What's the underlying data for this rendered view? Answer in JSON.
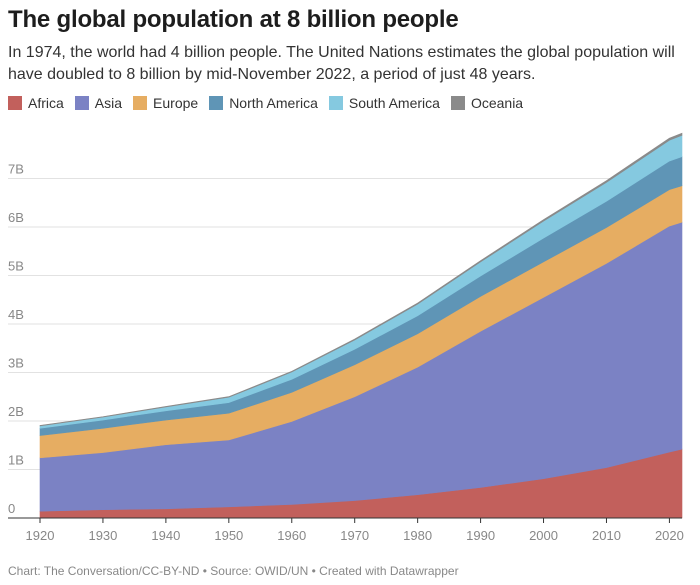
{
  "title": "The global population at 8 billion people",
  "subtitle": "In 1974, the world had 4 billion people. The United Nations estimates the global population will have doubled to 8 billion by mid-November 2022, a period of just 48 years.",
  "footer": "Chart: The Conversation/CC-BY-ND • Source: OWID/UN • Created with Datawrapper",
  "chart_data": {
    "type": "area",
    "stacked": true,
    "x": [
      1920,
      1930,
      1940,
      1950,
      1960,
      1970,
      1980,
      1990,
      2000,
      2010,
      2020,
      2022
    ],
    "series": [
      {
        "name": "Africa",
        "color": "#c2605c",
        "values": [
          0.14,
          0.17,
          0.19,
          0.23,
          0.28,
          0.36,
          0.48,
          0.63,
          0.81,
          1.04,
          1.36,
          1.42
        ]
      },
      {
        "name": "Asia",
        "color": "#7b82c4",
        "values": [
          1.1,
          1.18,
          1.32,
          1.38,
          1.71,
          2.14,
          2.63,
          3.22,
          3.74,
          4.21,
          4.66,
          4.68
        ]
      },
      {
        "name": "Europe",
        "color": "#e6ad62",
        "values": [
          0.46,
          0.5,
          0.51,
          0.55,
          0.6,
          0.66,
          0.69,
          0.72,
          0.73,
          0.74,
          0.75,
          0.75
        ]
      },
      {
        "name": "North America",
        "color": "#5f95b6",
        "values": [
          0.15,
          0.17,
          0.19,
          0.22,
          0.27,
          0.32,
          0.37,
          0.42,
          0.49,
          0.54,
          0.59,
          0.6
        ]
      },
      {
        "name": "South America",
        "color": "#85c9e0",
        "values": [
          0.05,
          0.06,
          0.08,
          0.11,
          0.15,
          0.19,
          0.24,
          0.29,
          0.35,
          0.39,
          0.43,
          0.44
        ]
      },
      {
        "name": "Oceania",
        "color": "#8a8a8a",
        "values": [
          0.009,
          0.01,
          0.011,
          0.013,
          0.016,
          0.02,
          0.023,
          0.027,
          0.031,
          0.037,
          0.043,
          0.045
        ]
      }
    ],
    "ylim": [
      0,
      8
    ],
    "yticks": [
      0,
      1,
      2,
      3,
      4,
      5,
      6,
      7
    ],
    "ytick_labels": [
      "0",
      "1B",
      "2B",
      "3B",
      "4B",
      "5B",
      "6B",
      "7B"
    ],
    "xlim": [
      1920,
      2022
    ],
    "xticks": [
      1920,
      1930,
      1940,
      1950,
      1960,
      1970,
      1980,
      1990,
      2000,
      2010,
      2020
    ],
    "xtick_labels": [
      "1920",
      "1930",
      "1940",
      "1950",
      "1960",
      "1970",
      "1980",
      "1990",
      "2000",
      "2010",
      "2020"
    ],
    "grid": true,
    "legend_position": "top-left"
  }
}
